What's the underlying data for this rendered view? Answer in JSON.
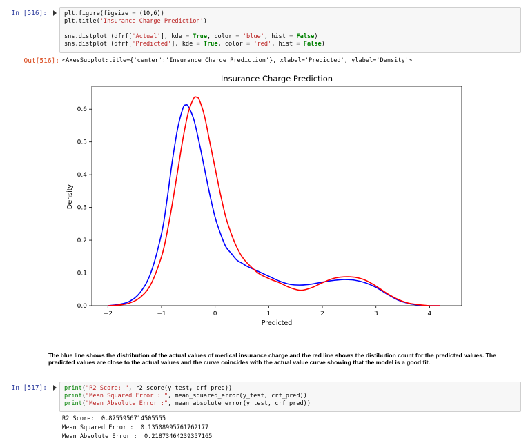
{
  "cell1": {
    "prompt": "In [516]:",
    "lines": [
      [
        {
          "t": "plt.figure(figsize ",
          "c": ""
        },
        {
          "t": "=",
          "c": "n"
        },
        {
          "t": " (10,6))",
          "c": ""
        }
      ],
      [
        {
          "t": "plt.title(",
          "c": ""
        },
        {
          "t": "'Insurance Charge Prediction'",
          "c": "s"
        },
        {
          "t": ")",
          "c": ""
        }
      ],
      [],
      [
        {
          "t": "sns.distplot (dfrf[",
          "c": ""
        },
        {
          "t": "'Actual'",
          "c": "s"
        },
        {
          "t": "], kde ",
          "c": ""
        },
        {
          "t": "=",
          "c": "n"
        },
        {
          "t": " ",
          "c": ""
        },
        {
          "t": "True",
          "c": "k"
        },
        {
          "t": ", color ",
          "c": ""
        },
        {
          "t": "=",
          "c": "n"
        },
        {
          "t": " ",
          "c": ""
        },
        {
          "t": "'blue'",
          "c": "s"
        },
        {
          "t": ", hist ",
          "c": ""
        },
        {
          "t": "=",
          "c": "n"
        },
        {
          "t": " ",
          "c": ""
        },
        {
          "t": "False",
          "c": "k"
        },
        {
          "t": ")",
          "c": ""
        }
      ],
      [
        {
          "t": "sns.distplot (dfrf[",
          "c": ""
        },
        {
          "t": "'Predicted'",
          "c": "s"
        },
        {
          "t": "], kde ",
          "c": ""
        },
        {
          "t": "=",
          "c": "n"
        },
        {
          "t": " ",
          "c": ""
        },
        {
          "t": "True",
          "c": "k"
        },
        {
          "t": ", color ",
          "c": ""
        },
        {
          "t": "=",
          "c": "n"
        },
        {
          "t": " ",
          "c": ""
        },
        {
          "t": "'red'",
          "c": "s"
        },
        {
          "t": ", hist ",
          "c": ""
        },
        {
          "t": "=",
          "c": "n"
        },
        {
          "t": " ",
          "c": ""
        },
        {
          "t": "False",
          "c": "k"
        },
        {
          "t": ")",
          "c": ""
        }
      ]
    ],
    "out_prompt": "Out[516]:",
    "out_text": "<AxesSubplot:title={'center':'Insurance Charge Prediction'}, xlabel='Predicted', ylabel='Density'>"
  },
  "chart_data": {
    "type": "line",
    "title": "Insurance Charge Prediction",
    "xlabel": "Predicted",
    "ylabel": "Density",
    "xlim": [
      -2.3,
      4.6
    ],
    "ylim": [
      0,
      0.67
    ],
    "xticks": [
      -2,
      -1,
      0,
      1,
      2,
      3,
      4
    ],
    "yticks": [
      0.0,
      0.1,
      0.2,
      0.3,
      0.4,
      0.5,
      0.6
    ],
    "xtick_labels": [
      "−2",
      "−1",
      "0",
      "1",
      "2",
      "3",
      "4"
    ],
    "ytick_labels": [
      "0.0",
      "0.1",
      "0.2",
      "0.3",
      "0.4",
      "0.5",
      "0.6"
    ],
    "series": [
      {
        "color": "#0000ff",
        "x": [
          -2.0,
          -1.8,
          -1.6,
          -1.4,
          -1.2,
          -1.0,
          -0.9,
          -0.8,
          -0.7,
          -0.6,
          -0.55,
          -0.5,
          -0.4,
          -0.3,
          -0.2,
          -0.1,
          0.0,
          0.1,
          0.2,
          0.3,
          0.4,
          0.5,
          0.6,
          0.8,
          1.0,
          1.2,
          1.4,
          1.6,
          1.8,
          2.0,
          2.2,
          2.4,
          2.6,
          2.8,
          3.0,
          3.2,
          3.4,
          3.6,
          3.8,
          4.0,
          4.2
        ],
        "y": [
          0.0,
          0.004,
          0.013,
          0.04,
          0.1,
          0.22,
          0.32,
          0.44,
          0.54,
          0.603,
          0.613,
          0.608,
          0.57,
          0.5,
          0.42,
          0.34,
          0.27,
          0.22,
          0.18,
          0.16,
          0.14,
          0.13,
          0.12,
          0.105,
          0.09,
          0.075,
          0.065,
          0.063,
          0.066,
          0.072,
          0.077,
          0.08,
          0.078,
          0.07,
          0.056,
          0.036,
          0.018,
          0.007,
          0.002,
          0.0,
          0.0
        ]
      },
      {
        "color": "#ff0000",
        "x": [
          -2.0,
          -1.8,
          -1.6,
          -1.4,
          -1.2,
          -1.0,
          -0.9,
          -0.8,
          -0.7,
          -0.6,
          -0.5,
          -0.4,
          -0.35,
          -0.3,
          -0.2,
          -0.1,
          0.0,
          0.1,
          0.2,
          0.3,
          0.4,
          0.5,
          0.6,
          0.8,
          1.0,
          1.2,
          1.4,
          1.6,
          1.8,
          2.0,
          2.2,
          2.4,
          2.6,
          2.8,
          3.0,
          3.2,
          3.4,
          3.6,
          3.8,
          4.0,
          4.2
        ],
        "y": [
          0.0,
          0.002,
          0.008,
          0.025,
          0.065,
          0.15,
          0.22,
          0.31,
          0.41,
          0.51,
          0.59,
          0.633,
          0.637,
          0.63,
          0.58,
          0.5,
          0.42,
          0.34,
          0.27,
          0.22,
          0.18,
          0.15,
          0.13,
          0.1,
          0.083,
          0.07,
          0.055,
          0.047,
          0.055,
          0.07,
          0.083,
          0.088,
          0.087,
          0.078,
          0.06,
          0.038,
          0.02,
          0.008,
          0.003,
          0.0,
          0.0
        ]
      }
    ]
  },
  "markdown": {
    "text": "The blue line shows the distribution of the actual values of medical insurance charge and the red line shows the distibution count for the predicted values. The predicted values are close to the actual values and the curve coincides with the actual value curve showing that the model is a good fit."
  },
  "cell2": {
    "prompt": "In [517]:",
    "lines": [
      [
        {
          "t": "print",
          "c": "b"
        },
        {
          "t": "(",
          "c": ""
        },
        {
          "t": "\"R2 Score: \"",
          "c": "s"
        },
        {
          "t": ", r2_score(y_test, crf_pred))",
          "c": ""
        }
      ],
      [
        {
          "t": "print",
          "c": "b"
        },
        {
          "t": "(",
          "c": ""
        },
        {
          "t": "\"Mean Squared Error : \"",
          "c": "s"
        },
        {
          "t": ", mean_squared_error(y_test, crf_pred))",
          "c": ""
        }
      ],
      [
        {
          "t": "print",
          "c": "b"
        },
        {
          "t": "(",
          "c": ""
        },
        {
          "t": "\"Mean Absolute Error :\"",
          "c": "s"
        },
        {
          "t": ", mean_absolute_error(y_test, crf_pred))",
          "c": ""
        }
      ]
    ],
    "outputs": [
      "R2 Score:  0.8755956714505555",
      "Mean Squared Error :  0.13508995761762177",
      "Mean Absolute Error :  0.21873464239357165"
    ]
  }
}
